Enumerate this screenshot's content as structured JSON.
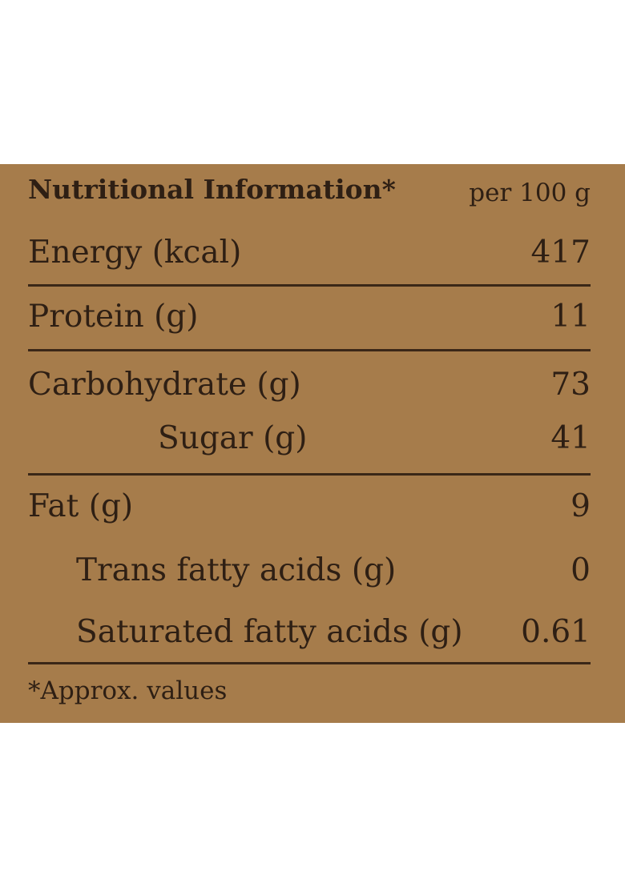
{
  "header": {
    "title": "Nutritional Information*",
    "unit": "per 100 g"
  },
  "rows": [
    {
      "label": "Energy (kcal)",
      "value": "417"
    },
    {
      "label": "Protein (g)",
      "value": "11"
    },
    {
      "label": "Carbohydrate (g)",
      "value": "73"
    },
    {
      "label": "Sugar (g)",
      "value": "41"
    },
    {
      "label": "Fat (g)",
      "value": "9"
    },
    {
      "label": "Trans fatty acids (g)",
      "value": "0"
    },
    {
      "label": "Saturated fatty acids (g)",
      "value": "0.61"
    }
  ],
  "footnote": "*Approx. values",
  "colors": {
    "panel": "#a67c4b",
    "text": "#2e1f14",
    "rule": "#3a2717"
  }
}
